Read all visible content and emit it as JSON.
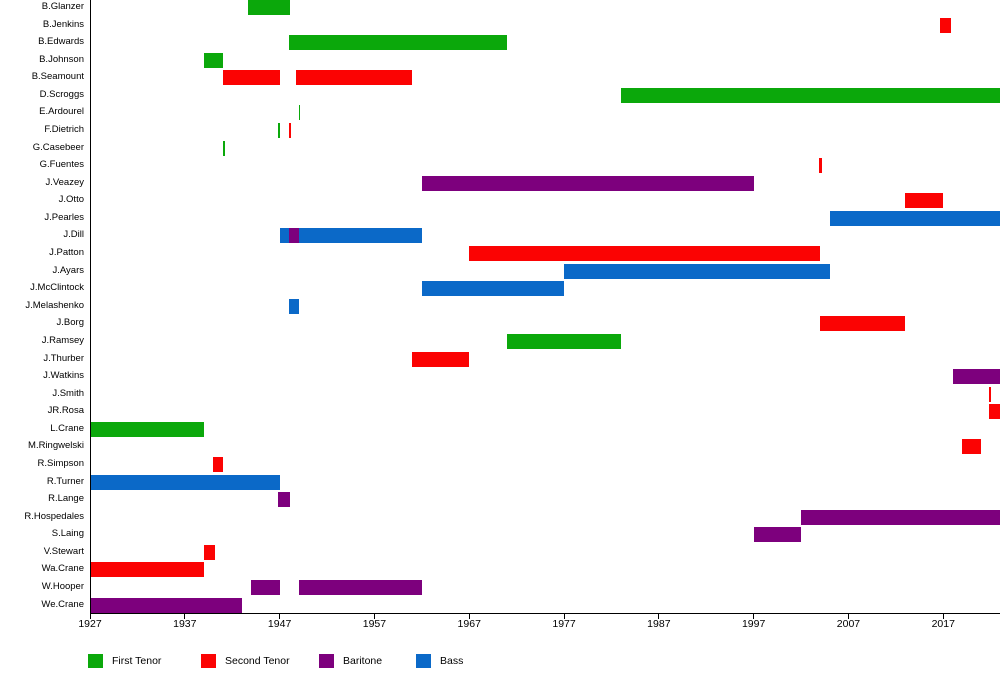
{
  "chart_data": {
    "type": "gantt-timeline",
    "description": "Membership timeline chart: singers (rows) vs years (x-axis), colored by voice part",
    "x_axis": {
      "min_year": 1927,
      "max_year": 2023,
      "ticks": [
        1927,
        1937,
        1947,
        1957,
        1967,
        1977,
        1987,
        1997,
        2007,
        2017
      ]
    },
    "legend": [
      {
        "part": "first_tenor",
        "label": "First Tenor",
        "color": "#0BA80B"
      },
      {
        "part": "second_tenor",
        "label": "Second Tenor",
        "color": "#FB0303"
      },
      {
        "part": "baritone",
        "label": "Baritone",
        "color": "#7D007D"
      },
      {
        "part": "bass",
        "label": "Bass",
        "color": "#0B69C8"
      }
    ],
    "rows": [
      {
        "name": "B.Glanzer",
        "segments": [
          {
            "part": "first_tenor",
            "start": 1943.7,
            "end": 1948.1
          }
        ]
      },
      {
        "name": "B.Jenkins",
        "segments": [
          {
            "part": "second_tenor",
            "start": 2016.7,
            "end": 2017.8
          }
        ]
      },
      {
        "name": "B.Edwards",
        "segments": [
          {
            "part": "first_tenor",
            "start": 1948,
            "end": 1971
          }
        ]
      },
      {
        "name": "B.Johnson",
        "segments": [
          {
            "part": "first_tenor",
            "start": 1939,
            "end": 1941
          }
        ]
      },
      {
        "name": "B.Seamount",
        "segments": [
          {
            "part": "second_tenor",
            "start": 1941,
            "end": 1947
          },
          {
            "part": "second_tenor",
            "start": 1948.7,
            "end": 1961
          }
        ]
      },
      {
        "name": "D.Scroggs",
        "segments": [
          {
            "part": "first_tenor",
            "start": 1983,
            "end": 2023
          }
        ]
      },
      {
        "name": "E.Ardourel",
        "segments": [
          {
            "part": "first_tenor",
            "start": 1949,
            "end": 1949.2
          }
        ]
      },
      {
        "name": "F.Dietrich",
        "segments": [
          {
            "part": "first_tenor",
            "start": 1946.8,
            "end": 1947
          },
          {
            "part": "second_tenor",
            "start": 1948,
            "end": 1948.2
          }
        ]
      },
      {
        "name": "G.Casebeer",
        "segments": [
          {
            "part": "first_tenor",
            "start": 1941,
            "end": 1941.2
          }
        ]
      },
      {
        "name": "G.Fuentes",
        "segments": [
          {
            "part": "second_tenor",
            "start": 2003.9,
            "end": 2004.2
          }
        ]
      },
      {
        "name": "J.Veazey",
        "segments": [
          {
            "part": "baritone",
            "start": 1962,
            "end": 1997
          }
        ]
      },
      {
        "name": "J.Otto",
        "segments": [
          {
            "part": "second_tenor",
            "start": 2013,
            "end": 2017
          }
        ]
      },
      {
        "name": "J.Pearles",
        "segments": [
          {
            "part": "bass",
            "start": 2005,
            "end": 2023
          }
        ]
      },
      {
        "name": "J.Dill",
        "segments": [
          {
            "part": "bass",
            "start": 1947,
            "end": 1948
          },
          {
            "part": "baritone",
            "start": 1948,
            "end": 1949
          },
          {
            "part": "bass",
            "start": 1949,
            "end": 1962
          }
        ]
      },
      {
        "name": "J.Patton",
        "segments": [
          {
            "part": "second_tenor",
            "start": 1967,
            "end": 2004
          }
        ]
      },
      {
        "name": "J.Ayars",
        "segments": [
          {
            "part": "bass",
            "start": 1977,
            "end": 2005
          }
        ]
      },
      {
        "name": "J.McClintock",
        "segments": [
          {
            "part": "bass",
            "start": 1962,
            "end": 1977
          }
        ]
      },
      {
        "name": "J.Melashenko",
        "segments": [
          {
            "part": "bass",
            "start": 1948,
            "end": 1949
          }
        ]
      },
      {
        "name": "J.Borg",
        "segments": [
          {
            "part": "second_tenor",
            "start": 2004,
            "end": 2013
          }
        ]
      },
      {
        "name": "J.Ramsey",
        "segments": [
          {
            "part": "first_tenor",
            "start": 1971,
            "end": 1983
          }
        ]
      },
      {
        "name": "J.Thurber",
        "segments": [
          {
            "part": "second_tenor",
            "start": 1961,
            "end": 1967
          }
        ]
      },
      {
        "name": "J.Watkins",
        "segments": [
          {
            "part": "baritone",
            "start": 2018,
            "end": 2023
          }
        ]
      },
      {
        "name": "J.Smith",
        "segments": [
          {
            "part": "second_tenor",
            "start": 2021.8,
            "end": 2022
          }
        ]
      },
      {
        "name": "JR.Rosa",
        "segments": [
          {
            "part": "second_tenor",
            "start": 2021.8,
            "end": 2023
          }
        ]
      },
      {
        "name": "L.Crane",
        "segments": [
          {
            "part": "first_tenor",
            "start": 1927,
            "end": 1939
          }
        ]
      },
      {
        "name": "M.Ringwelski",
        "segments": [
          {
            "part": "second_tenor",
            "start": 2019,
            "end": 2021
          }
        ]
      },
      {
        "name": "R.Simpson",
        "segments": [
          {
            "part": "second_tenor",
            "start": 1940,
            "end": 1941
          }
        ]
      },
      {
        "name": "R.Turner",
        "segments": [
          {
            "part": "bass",
            "start": 1927,
            "end": 1947
          }
        ]
      },
      {
        "name": "R.Lange",
        "segments": [
          {
            "part": "baritone",
            "start": 1946.8,
            "end": 1948.1
          }
        ]
      },
      {
        "name": "R.Hospedales",
        "segments": [
          {
            "part": "baritone",
            "start": 2002,
            "end": 2023
          }
        ]
      },
      {
        "name": "S.Laing",
        "segments": [
          {
            "part": "baritone",
            "start": 1997,
            "end": 2002
          }
        ]
      },
      {
        "name": "V.Stewart",
        "segments": [
          {
            "part": "second_tenor",
            "start": 1939,
            "end": 1940.2
          }
        ]
      },
      {
        "name": "Wa.Crane",
        "segments": [
          {
            "part": "second_tenor",
            "start": 1927,
            "end": 1939
          }
        ]
      },
      {
        "name": "W.Hooper",
        "segments": [
          {
            "part": "baritone",
            "start": 1944,
            "end": 1947
          },
          {
            "part": "baritone",
            "start": 1949,
            "end": 1962
          }
        ]
      },
      {
        "name": "We.Crane",
        "segments": [
          {
            "part": "baritone",
            "start": 1927,
            "end": 1943
          }
        ]
      }
    ]
  }
}
